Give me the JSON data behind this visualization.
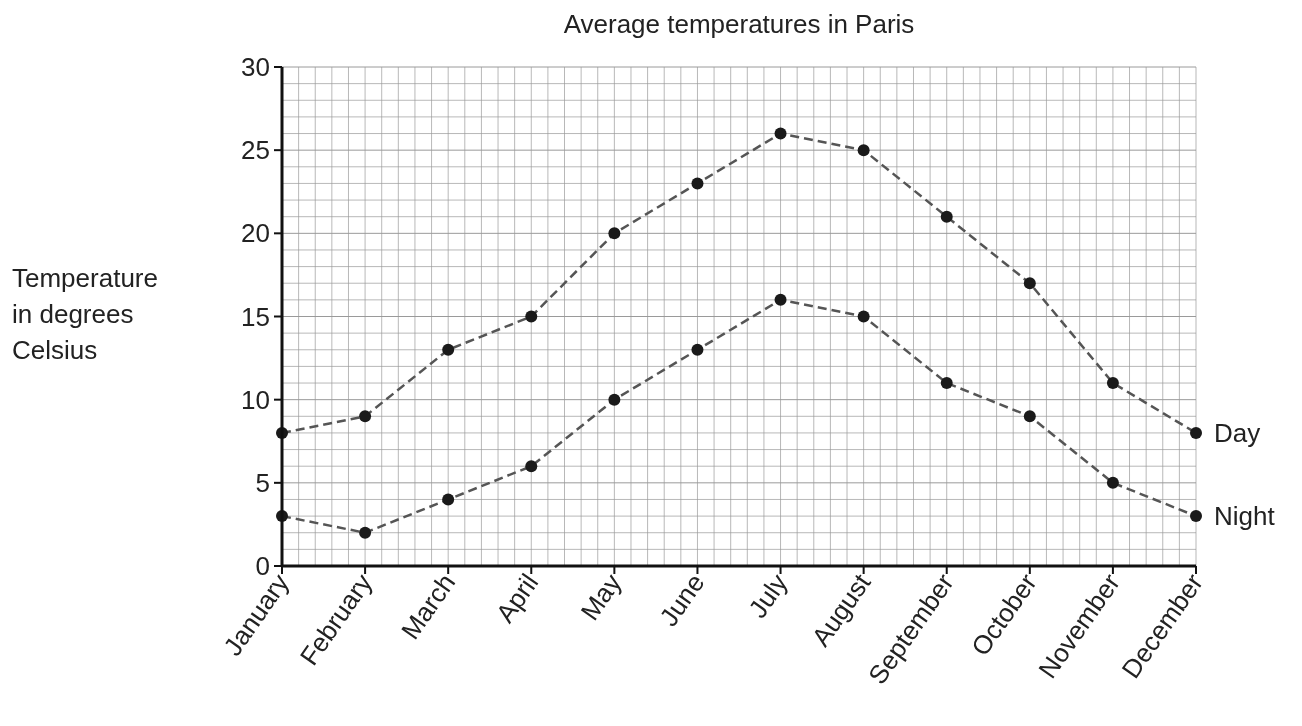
{
  "chart_data": {
    "type": "line",
    "title": "Average temperatures in Paris",
    "ylabel": "Temperature in degrees Celsius",
    "categories": [
      "January",
      "February",
      "March",
      "April",
      "May",
      "June",
      "July",
      "August",
      "September",
      "October",
      "November",
      "December"
    ],
    "series": [
      {
        "name": "Day",
        "color": "#555555",
        "values": [
          8,
          9,
          13,
          15,
          20,
          23,
          26,
          25,
          21,
          17,
          11,
          8
        ]
      },
      {
        "name": "Night",
        "color": "#555555",
        "values": [
          3,
          2,
          4,
          6,
          10,
          13,
          16,
          15,
          11,
          9,
          5,
          3
        ]
      }
    ],
    "ylim": [
      0,
      30
    ],
    "yticks": [
      0,
      5,
      10,
      15,
      20,
      25,
      30
    ],
    "grid": true,
    "marker": "circle",
    "line_style": "dashed"
  }
}
